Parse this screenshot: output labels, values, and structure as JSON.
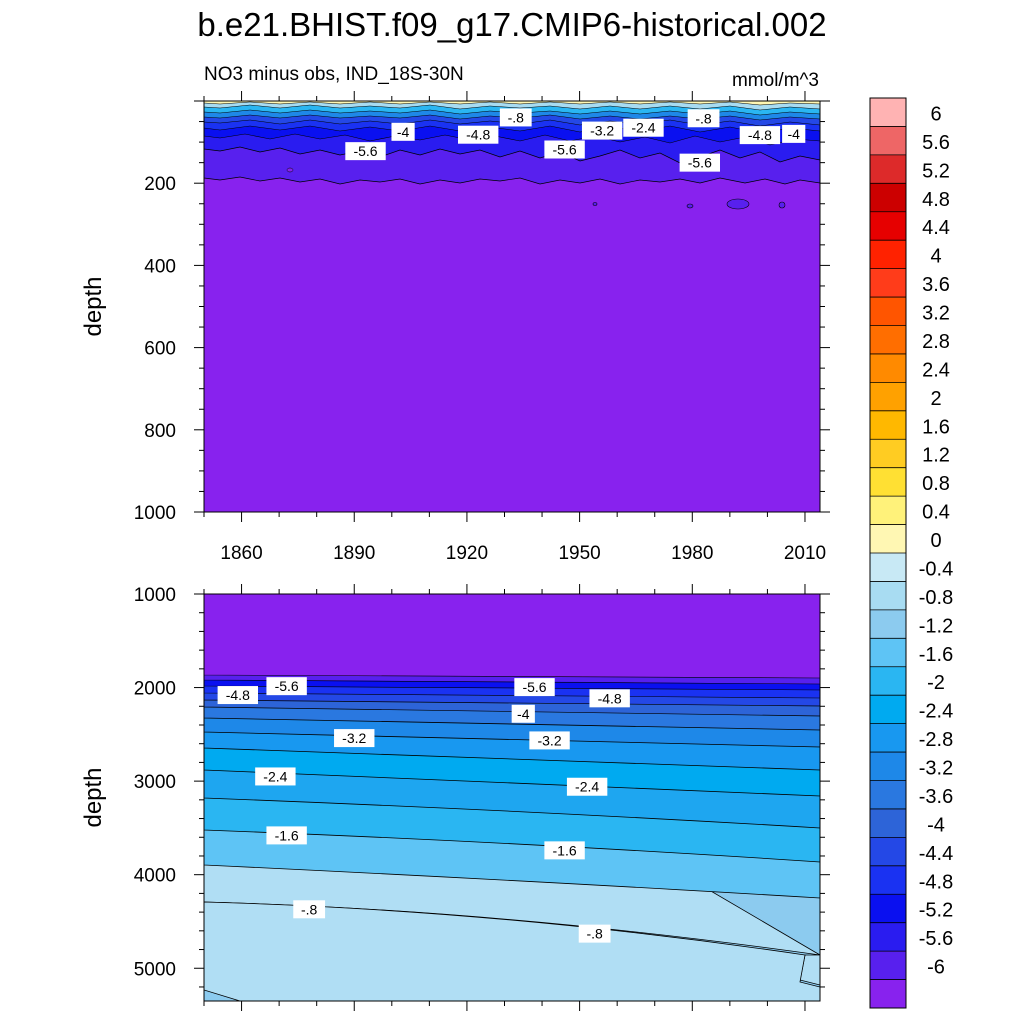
{
  "title": "b.e21.BHIST.f09_g17.CMIP6-historical.002",
  "subtitle": "NO3 minus obs, IND_18S-30N",
  "units": "mmol/m^3",
  "chart_data": [
    {
      "type": "heatmap",
      "panel": "upper",
      "xlabel": "",
      "ylabel": "depth",
      "xlim": [
        1850,
        2014
      ],
      "ylim": [
        1000,
        0
      ],
      "xticks": [
        "1860",
        "1890",
        "1920",
        "1950",
        "1980",
        "2010"
      ],
      "yticks": [
        "200",
        "400",
        "600",
        "800",
        "1000"
      ],
      "contour_labels": [
        {
          "text": "-.8",
          "x": 1933,
          "y": 40
        },
        {
          "text": "-4",
          "x": 1903,
          "y": 75
        },
        {
          "text": "-4.8",
          "x": 1923,
          "y": 82
        },
        {
          "text": "-3.2",
          "x": 1956,
          "y": 72
        },
        {
          "text": "-2.4",
          "x": 1967,
          "y": 65
        },
        {
          "text": "-.8",
          "x": 1983,
          "y": 42
        },
        {
          "text": "-4.8",
          "x": 1998,
          "y": 83
        },
        {
          "text": "-4",
          "x": 2007,
          "y": 80
        },
        {
          "text": "-5.6",
          "x": 1893,
          "y": 122
        },
        {
          "text": "-5.6",
          "x": 1946,
          "y": 118
        },
        {
          "text": "-5.6",
          "x": 1982,
          "y": 150
        }
      ]
    },
    {
      "type": "heatmap",
      "panel": "lower",
      "xlabel": "",
      "ylabel": "depth",
      "xlim": [
        1850,
        2014
      ],
      "ylim": [
        5350,
        1000
      ],
      "yticks": [
        "1000",
        "2000",
        "3000",
        "4000",
        "5000"
      ],
      "contour_labels": [
        {
          "text": "-4.8",
          "x": 1859,
          "y": 2080
        },
        {
          "text": "-5.6",
          "x": 1872,
          "y": 1985
        },
        {
          "text": "-5.6",
          "x": 1938,
          "y": 1995
        },
        {
          "text": "-4.8",
          "x": 1958,
          "y": 2115
        },
        {
          "text": "-4",
          "x": 1935,
          "y": 2280
        },
        {
          "text": "-3.2",
          "x": 1890,
          "y": 2540
        },
        {
          "text": "-3.2",
          "x": 1942,
          "y": 2565
        },
        {
          "text": "-2.4",
          "x": 1869,
          "y": 2950
        },
        {
          "text": "-2.4",
          "x": 1952,
          "y": 3060
        },
        {
          "text": "-1.6",
          "x": 1872,
          "y": 3580
        },
        {
          "text": "-1.6",
          "x": 1946,
          "y": 3740
        },
        {
          "text": "-.8",
          "x": 1878,
          "y": 4370
        },
        {
          "text": "-.8",
          "x": 1954,
          "y": 4630
        }
      ]
    }
  ],
  "colorbar": {
    "labels": [
      "6",
      "5.6",
      "5.2",
      "4.8",
      "4.4",
      "4",
      "3.6",
      "3.2",
      "2.8",
      "2.4",
      "2",
      "1.6",
      "1.2",
      "0.8",
      "0.4",
      "0",
      "-0.4",
      "-0.8",
      "-1.2",
      "-1.6",
      "-2",
      "-2.4",
      "-2.8",
      "-3.2",
      "-3.6",
      "-4",
      "-4.4",
      "-4.8",
      "-5.2",
      "-5.6",
      "-6"
    ],
    "colors": [
      "#ffb3b3",
      "#ee6666",
      "#dd2a2a",
      "#cc0000",
      "#e60000",
      "#ff2200",
      "#ff3c1a",
      "#ff5500",
      "#ff6e00",
      "#ff8a00",
      "#ffa100",
      "#ffb800",
      "#ffcc22",
      "#ffe033",
      "#fff27a",
      "#fff7b3",
      "#c8e9f5",
      "#a8dcf2",
      "#8ccbef",
      "#5ec4f5",
      "#2ab6f2",
      "#00aaf0",
      "#1898f0",
      "#1e88e8",
      "#2a78e0",
      "#2d64d8",
      "#2448e6",
      "#1a32f2",
      "#0a10f0",
      "#2a1cf0",
      "#5820ee",
      "#8822ee"
    ]
  },
  "colors": {
    "deep_purple": "#8822ee",
    "violet": "#5820ee",
    "contour_line": "#000000"
  }
}
